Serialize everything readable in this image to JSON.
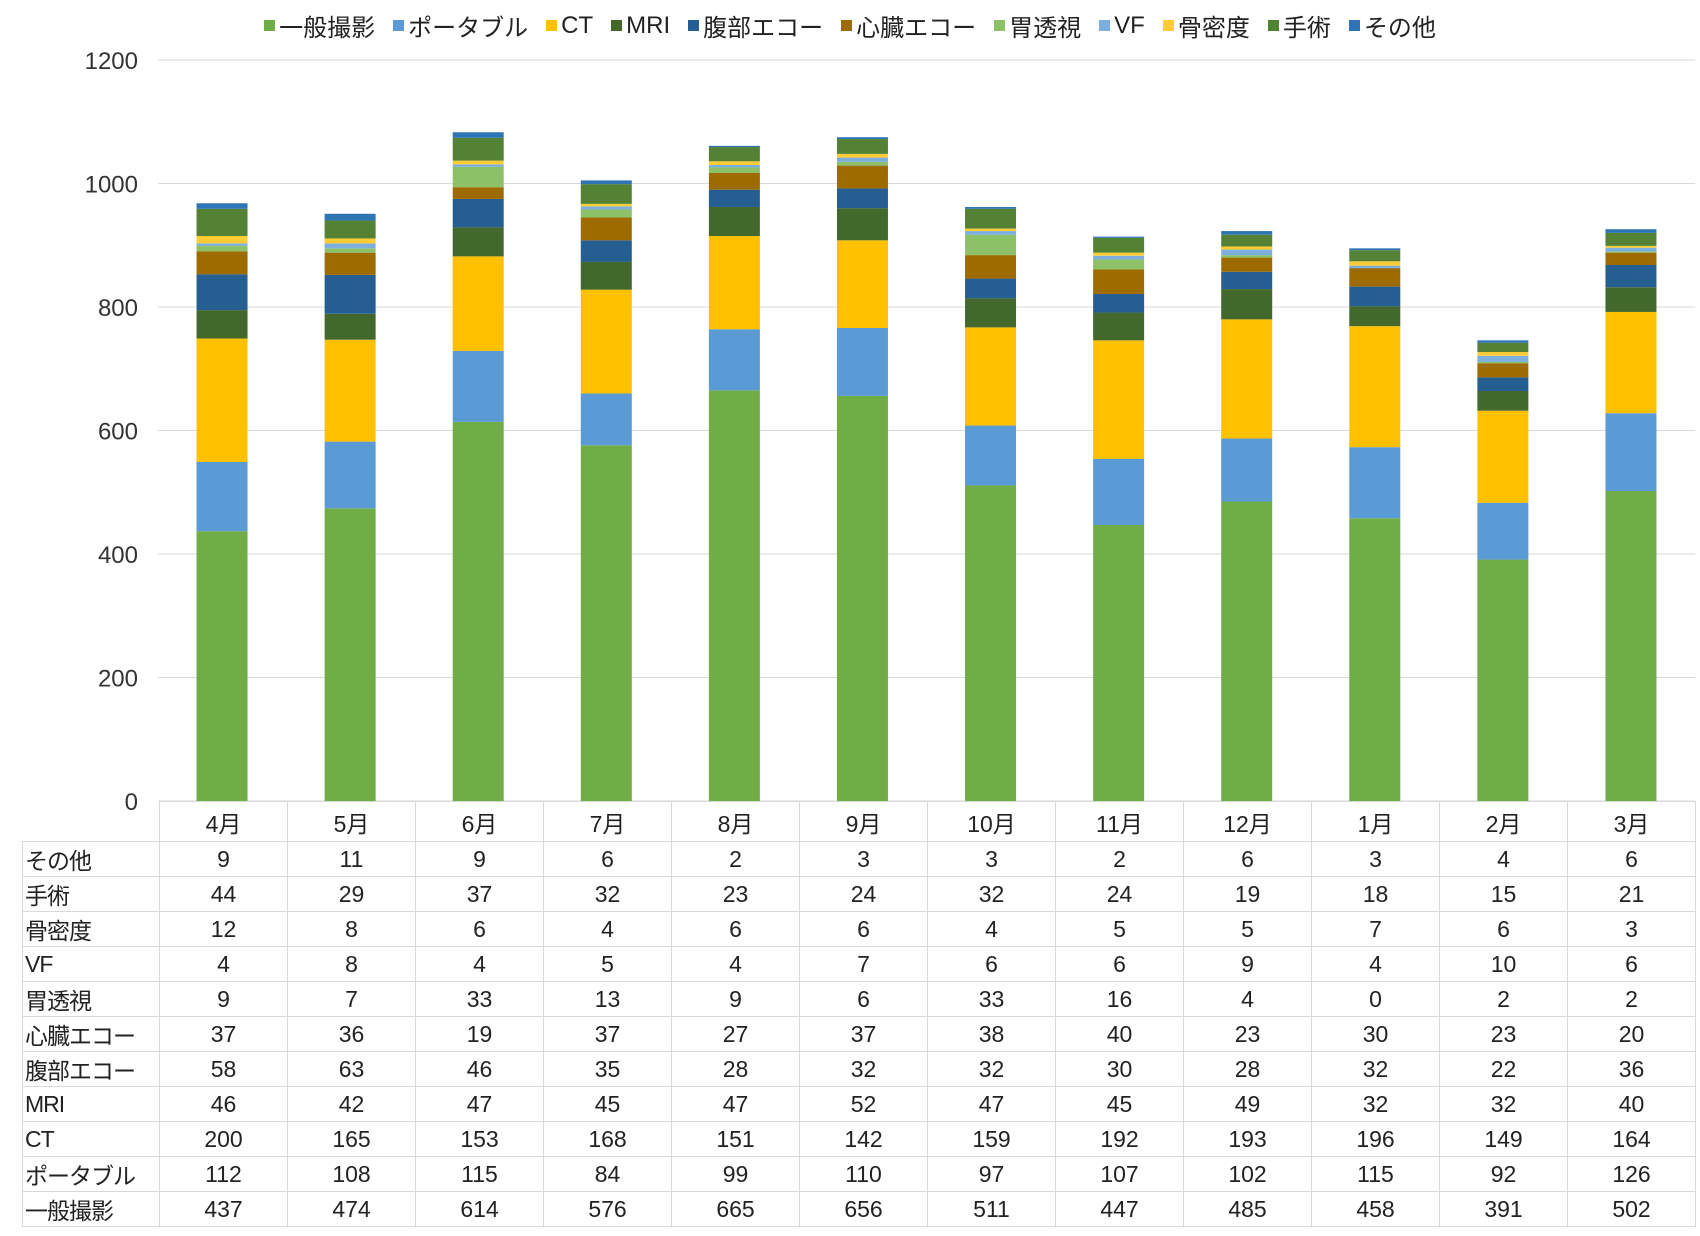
{
  "chart_data": {
    "type": "bar",
    "stacked": true,
    "title": "",
    "xlabel": "",
    "ylabel": "",
    "ylim": [
      0,
      1200
    ],
    "yticks": [
      0,
      200,
      400,
      600,
      800,
      1000,
      1200
    ],
    "grid": true,
    "legend_position": "top",
    "categories": [
      "4月",
      "5月",
      "6月",
      "7月",
      "8月",
      "9月",
      "10月",
      "11月",
      "12月",
      "1月",
      "2月",
      "3月"
    ],
    "series": [
      {
        "name": "一般撮影",
        "color": "#70AD47",
        "values": [
          437,
          474,
          614,
          576,
          665,
          656,
          511,
          447,
          485,
          458,
          391,
          502
        ]
      },
      {
        "name": "ポータブル",
        "color": "#5B9BD5",
        "values": [
          112,
          108,
          115,
          84,
          99,
          110,
          97,
          107,
          102,
          115,
          92,
          126
        ]
      },
      {
        "name": "CT",
        "color": "#FFC000",
        "values": [
          200,
          165,
          153,
          168,
          151,
          142,
          159,
          192,
          193,
          196,
          149,
          164
        ]
      },
      {
        "name": "MRI",
        "color": "#43682B",
        "values": [
          46,
          42,
          47,
          45,
          47,
          52,
          47,
          45,
          49,
          32,
          32,
          40
        ]
      },
      {
        "name": "腹部エコー",
        "color": "#255E91",
        "values": [
          58,
          63,
          46,
          35,
          28,
          32,
          32,
          30,
          28,
          32,
          22,
          36
        ]
      },
      {
        "name": "心臓エコー",
        "color": "#9E6B00",
        "values": [
          37,
          36,
          19,
          37,
          27,
          37,
          38,
          40,
          23,
          30,
          23,
          20
        ]
      },
      {
        "name": "胃透視",
        "color": "#8CC168",
        "values": [
          9,
          7,
          33,
          13,
          9,
          6,
          33,
          16,
          4,
          0,
          2,
          2
        ]
      },
      {
        "name": "VF",
        "color": "#7CAFDD",
        "values": [
          4,
          8,
          4,
          5,
          4,
          7,
          6,
          6,
          9,
          4,
          10,
          6
        ]
      },
      {
        "name": "骨密度",
        "color": "#FFCD33",
        "values": [
          12,
          8,
          6,
          4,
          6,
          6,
          4,
          5,
          5,
          7,
          6,
          3
        ]
      },
      {
        "name": "手術",
        "color": "#548235",
        "values": [
          44,
          29,
          37,
          32,
          23,
          24,
          32,
          24,
          19,
          18,
          15,
          21
        ]
      },
      {
        "name": "その他",
        "color": "#2E75B6",
        "values": [
          9,
          11,
          9,
          6,
          2,
          3,
          3,
          2,
          6,
          3,
          4,
          6
        ]
      }
    ]
  }
}
